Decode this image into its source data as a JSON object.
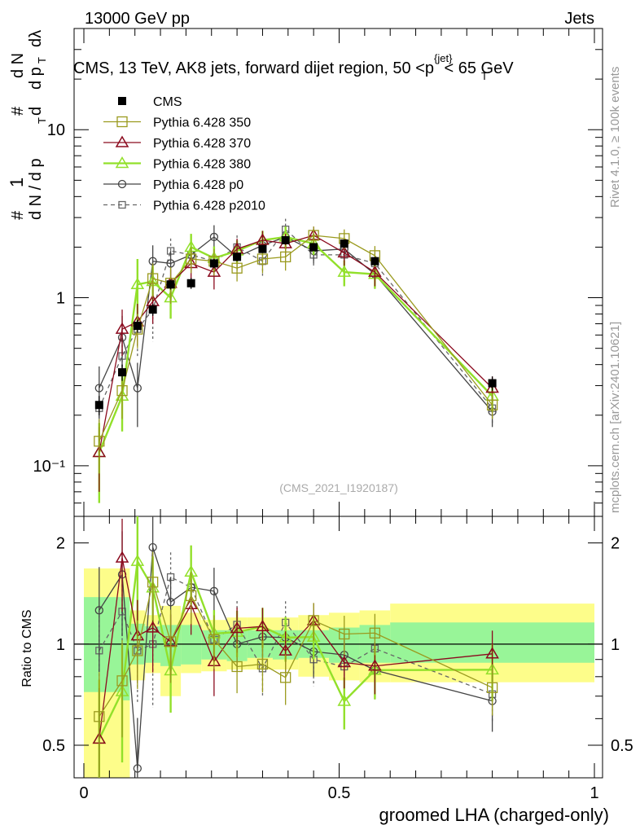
{
  "header": {
    "left": "13000 GeV pp",
    "right": "Jets"
  },
  "title": {
    "pre": "CMS, 13 TeV, AK8 jets, forward dijet region, 50 <",
    "p": "p",
    "sup": "{jet}",
    "sub": "T",
    "post": "< 65 GeV"
  },
  "ylabel_main": {
    "n1": "1",
    "n2": "#",
    "n3": "#",
    "dN": "d N / d p",
    "T1": "T",
    "dN2": "d N",
    "d2": "d",
    "dpT": "d p",
    "T2": "T",
    "dl": "dλ"
  },
  "watermark_rivet": "Rivet 4.1.0, ≥ 100k events",
  "watermark_mc": "mcplots.cern.ch [arXiv:2401.10621]",
  "analysis_tag": "(CMS_2021_I1920187)",
  "ratio_ylabel": "Ratio to CMS",
  "xlabel": "groomed LHA (charged-only)",
  "colors": {
    "cms": "#000000",
    "p350": "#9a9a1e",
    "p370": "#8b0a1e",
    "p380": "#92e02a",
    "p0": "#444444",
    "p2010": "#666666",
    "band_outer": "#fdfd8a",
    "band_inner": "#98f598"
  },
  "chart_data": {
    "type": "scatter",
    "x_range": [
      0,
      1
    ],
    "y_range_main": [
      0.05,
      40
    ],
    "y_scale_main": "log",
    "y_range_ratio": [
      0.4,
      2.4
    ],
    "y_scale_ratio": "log",
    "main_yticks": [
      {
        "value": 0.1,
        "label": "10⁻¹"
      },
      {
        "value": 1,
        "label": "1"
      },
      {
        "value": 10,
        "label": "10"
      }
    ],
    "ratio_yticks": [
      {
        "value": 0.5,
        "label": "0.5"
      },
      {
        "value": 1,
        "label": "1"
      },
      {
        "value": 2,
        "label": "2"
      }
    ],
    "xticks": [
      {
        "value": 0,
        "label": "0"
      },
      {
        "value": 0.5,
        "label": "0.5"
      },
      {
        "value": 1,
        "label": "1"
      }
    ],
    "x": [
      0.03,
      0.075,
      0.105,
      0.135,
      0.17,
      0.21,
      0.255,
      0.3,
      0.35,
      0.395,
      0.45,
      0.51,
      0.57,
      0.8
    ],
    "series": [
      {
        "name": "CMS",
        "key": "cms",
        "values": [
          0.23,
          0.36,
          0.68,
          0.85,
          1.2,
          1.22,
          1.6,
          1.75,
          1.95,
          2.2,
          2.0,
          2.1,
          1.65,
          0.31
        ],
        "errors": [
          0.03,
          0.04,
          0.06,
          0.07,
          0.08,
          0.09,
          0.1,
          0.1,
          0.1,
          0.12,
          0.1,
          0.12,
          0.1,
          0.03
        ]
      },
      {
        "name": "Pythia 6.428 350",
        "key": "p350",
        "values": [
          0.14,
          0.28,
          0.65,
          1.3,
          1.22,
          1.7,
          1.65,
          1.5,
          1.7,
          1.75,
          2.35,
          2.25,
          1.78,
          0.23
        ],
        "errors": [
          0.05,
          0.09,
          0.15,
          0.3,
          0.3,
          0.3,
          0.3,
          0.25,
          0.3,
          0.3,
          0.3,
          0.3,
          0.25,
          0.04
        ]
      },
      {
        "name": "Pythia 6.428 370",
        "key": "p370",
        "values": [
          0.12,
          0.65,
          0.72,
          0.95,
          1.22,
          1.6,
          1.42,
          1.95,
          2.2,
          2.1,
          2.35,
          1.85,
          1.42,
          0.29
        ],
        "errors": [
          0.05,
          0.2,
          0.2,
          0.25,
          0.25,
          0.3,
          0.3,
          0.3,
          0.3,
          0.3,
          0.3,
          0.3,
          0.25,
          0.05
        ]
      },
      {
        "name": "Pythia 6.428 380",
        "key": "p380",
        "values": [
          0.12,
          0.26,
          1.2,
          1.25,
          1.0,
          2.0,
          1.72,
          1.9,
          2.2,
          2.3,
          2.1,
          1.42,
          1.38,
          0.26
        ],
        "errors": [
          0.06,
          0.1,
          0.5,
          0.3,
          0.25,
          0.4,
          0.3,
          0.3,
          0.3,
          0.35,
          0.3,
          0.25,
          0.25,
          0.05
        ]
      },
      {
        "name": "Pythia 6.428 p0",
        "key": "p0",
        "values": [
          0.29,
          0.58,
          0.29,
          1.65,
          1.6,
          1.8,
          2.3,
          1.75,
          2.05,
          2.3,
          1.9,
          1.95,
          1.38,
          0.21
        ],
        "errors": [
          0.1,
          0.2,
          0.12,
          0.4,
          0.3,
          0.35,
          0.4,
          0.3,
          0.35,
          0.35,
          0.3,
          0.3,
          0.25,
          0.04
        ]
      },
      {
        "name": "Pythia 6.428 p2010",
        "key": "p2010",
        "values": [
          0.22,
          0.45,
          0.65,
          0.85,
          1.9,
          1.8,
          1.65,
          2.0,
          1.65,
          2.55,
          1.8,
          1.8,
          1.6,
          0.22
        ],
        "errors": [
          0.08,
          0.15,
          0.2,
          0.3,
          0.35,
          0.35,
          0.3,
          0.35,
          0.3,
          0.4,
          0.3,
          0.3,
          0.25,
          0.04
        ]
      }
    ],
    "ratio_band_inner": [
      {
        "x0": 0,
        "x1": 0.075,
        "lo": 0.72,
        "hi": 1.38
      },
      {
        "x0": 0.075,
        "x1": 0.09,
        "lo": 0.68,
        "hi": 1.38
      },
      {
        "x0": 0.09,
        "x1": 0.12,
        "lo": 0.87,
        "hi": 1.15
      },
      {
        "x0": 0.12,
        "x1": 0.15,
        "lo": 0.88,
        "hi": 1.13
      },
      {
        "x0": 0.15,
        "x1": 0.19,
        "lo": 0.86,
        "hi": 1.14
      },
      {
        "x0": 0.19,
        "x1": 0.23,
        "lo": 0.87,
        "hi": 1.14
      },
      {
        "x0": 0.23,
        "x1": 0.28,
        "lo": 0.9,
        "hi": 1.1
      },
      {
        "x0": 0.28,
        "x1": 0.32,
        "lo": 0.89,
        "hi": 1.1
      },
      {
        "x0": 0.32,
        "x1": 0.37,
        "lo": 0.91,
        "hi": 1.1
      },
      {
        "x0": 0.37,
        "x1": 0.42,
        "lo": 0.9,
        "hi": 1.1
      },
      {
        "x0": 0.42,
        "x1": 0.48,
        "lo": 0.91,
        "hi": 1.1
      },
      {
        "x0": 0.48,
        "x1": 0.54,
        "lo": 0.88,
        "hi": 1.12
      },
      {
        "x0": 0.54,
        "x1": 0.6,
        "lo": 0.88,
        "hi": 1.14
      },
      {
        "x0": 0.6,
        "x1": 1.0,
        "lo": 0.88,
        "hi": 1.16
      }
    ],
    "ratio_band_outer": [
      {
        "x0": 0,
        "x1": 0.075,
        "lo": 0.4,
        "hi": 1.68
      },
      {
        "x0": 0.075,
        "x1": 0.09,
        "lo": 0.4,
        "hi": 1.68
      },
      {
        "x0": 0.09,
        "x1": 0.12,
        "lo": 0.78,
        "hi": 1.26
      },
      {
        "x0": 0.12,
        "x1": 0.15,
        "lo": 0.82,
        "hi": 1.22
      },
      {
        "x0": 0.15,
        "x1": 0.19,
        "lo": 0.7,
        "hi": 1.3
      },
      {
        "x0": 0.19,
        "x1": 0.23,
        "lo": 0.82,
        "hi": 1.24
      },
      {
        "x0": 0.23,
        "x1": 0.28,
        "lo": 0.83,
        "hi": 1.18
      },
      {
        "x0": 0.28,
        "x1": 0.32,
        "lo": 0.84,
        "hi": 1.2
      },
      {
        "x0": 0.32,
        "x1": 0.37,
        "lo": 0.84,
        "hi": 1.2
      },
      {
        "x0": 0.37,
        "x1": 0.42,
        "lo": 0.84,
        "hi": 1.2
      },
      {
        "x0": 0.42,
        "x1": 0.48,
        "lo": 0.8,
        "hi": 1.22
      },
      {
        "x0": 0.48,
        "x1": 0.54,
        "lo": 0.78,
        "hi": 1.24
      },
      {
        "x0": 0.54,
        "x1": 0.6,
        "lo": 0.77,
        "hi": 1.26
      },
      {
        "x0": 0.6,
        "x1": 1.0,
        "lo": 0.77,
        "hi": 1.32
      }
    ]
  }
}
